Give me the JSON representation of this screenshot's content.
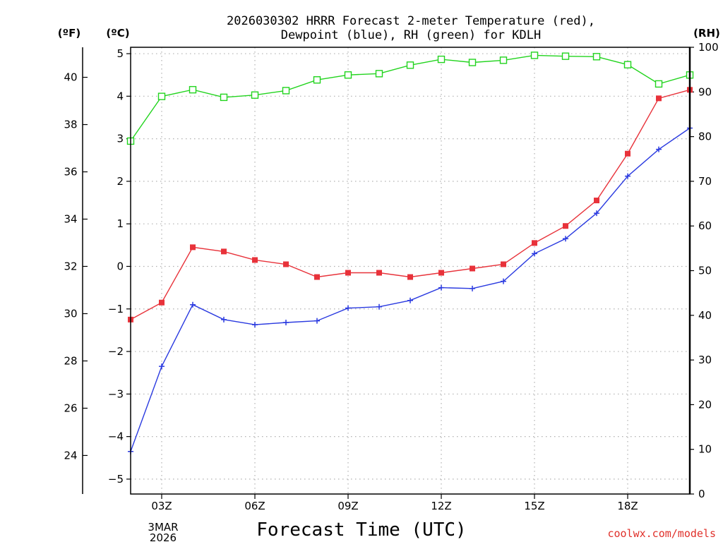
{
  "chart_data": {
    "type": "line",
    "title_line1": "2026030302 HRRR Forecast 2-meter Temperature (red),",
    "title_line2": "Dewpoint (blue), RH (green) for KDLH",
    "xlabel": "Forecast Time (UTC)",
    "credit": "coolwx.com/models",
    "units": {
      "fahrenheit": "(ºF)",
      "celsius": "(ºC)",
      "rh": "(RH)"
    },
    "date_label": [
      "3MAR",
      "2026"
    ],
    "x_hours": [
      2,
      3,
      4,
      5,
      6,
      7,
      8,
      9,
      10,
      11,
      12,
      13,
      14,
      15,
      16,
      17,
      18,
      19,
      20
    ],
    "x_range": [
      2,
      20
    ],
    "x_ticks": [
      {
        "hour": 3,
        "label": "03Z"
      },
      {
        "hour": 6,
        "label": "06Z"
      },
      {
        "hour": 9,
        "label": "09Z"
      },
      {
        "hour": 12,
        "label": "12Z"
      },
      {
        "hour": 15,
        "label": "15Z"
      },
      {
        "hour": 18,
        "label": "18Z"
      }
    ],
    "ylim_c": [
      -5.35,
      5.15
    ],
    "y_ticks_c": [
      -5,
      -4,
      -3,
      -2,
      -1,
      0,
      1,
      2,
      3,
      4,
      5
    ],
    "y_ticks_f": [
      24,
      26,
      28,
      30,
      32,
      34,
      36,
      38,
      40
    ],
    "ylim_rh": [
      0,
      100
    ],
    "y_ticks_rh": [
      0,
      10,
      20,
      30,
      40,
      50,
      60,
      70,
      80,
      90,
      100
    ],
    "grid": true,
    "series": [
      {
        "name": "Temperature",
        "axis": "c",
        "color": "#e8323a",
        "marker": "filled-square",
        "values": [
          -1.25,
          -0.85,
          0.45,
          0.35,
          0.15,
          0.05,
          -0.25,
          -0.15,
          -0.15,
          -0.25,
          -0.15,
          -0.05,
          0.05,
          0.55,
          0.95,
          1.55,
          2.65,
          3.95,
          4.15
        ]
      },
      {
        "name": "Dewpoint",
        "axis": "c",
        "color": "#2a3ae0",
        "marker": "plus",
        "values": [
          -4.35,
          -2.35,
          -0.9,
          -1.25,
          -1.37,
          -1.32,
          -1.28,
          -0.98,
          -0.95,
          -0.8,
          -0.5,
          -0.52,
          -0.35,
          0.3,
          0.65,
          1.25,
          2.12,
          2.75,
          3.25
        ]
      },
      {
        "name": "RH",
        "axis": "rh",
        "color": "#22d41e",
        "marker": "open-square",
        "values": [
          79,
          89,
          90.5,
          88.8,
          89.3,
          90.3,
          92.7,
          93.8,
          94.1,
          96,
          97.3,
          96.6,
          97.1,
          98.2,
          98,
          97.9,
          96.1,
          91.8,
          93.8
        ]
      }
    ]
  }
}
